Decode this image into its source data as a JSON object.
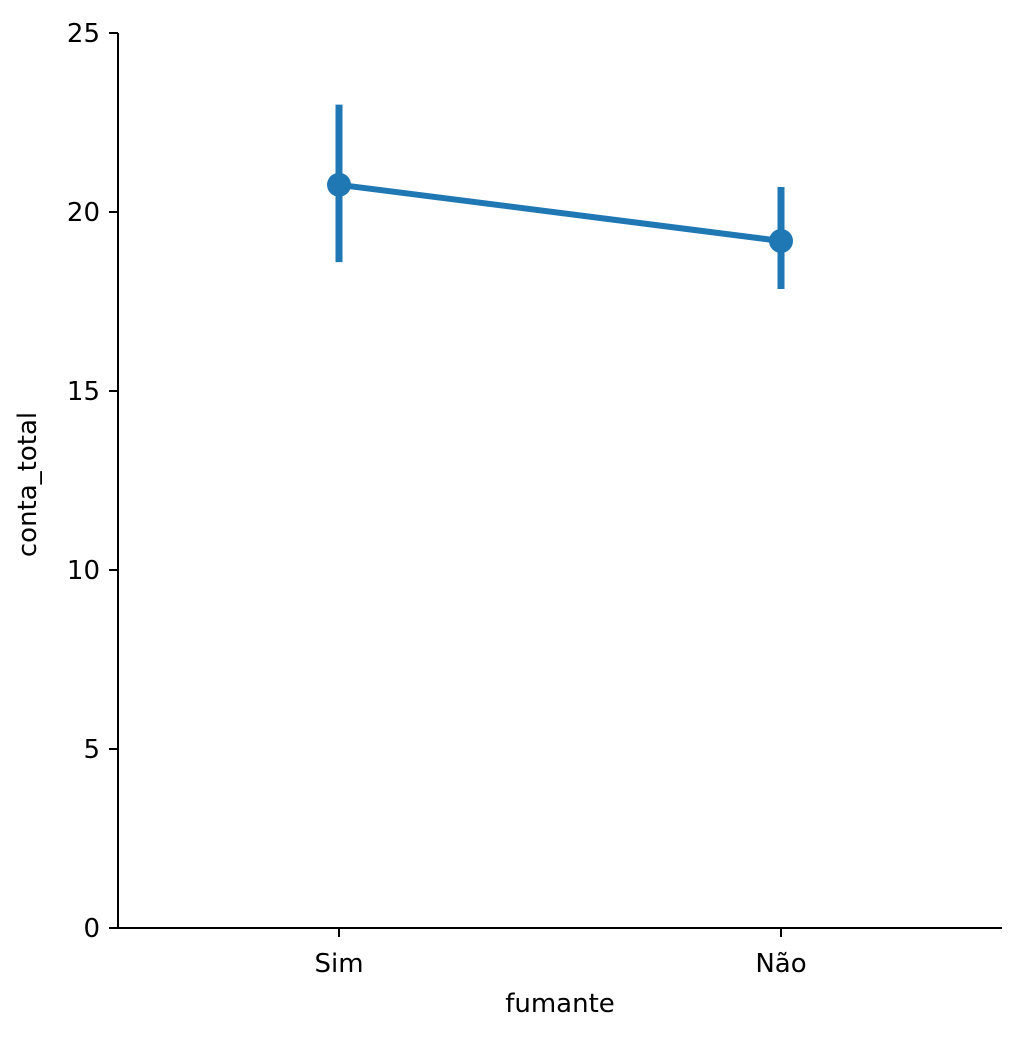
{
  "chart_data": {
    "type": "line",
    "categories": [
      "Sim",
      "Não"
    ],
    "series": [
      {
        "values": [
          20.76,
          19.19
        ],
        "ci_low": [
          18.6,
          17.85
        ],
        "ci_high": [
          23.0,
          20.7
        ]
      }
    ],
    "xlabel": "fumante",
    "ylabel": "conta_total",
    "ylim": [
      0,
      25
    ],
    "yticks": [
      "0",
      "5",
      "10",
      "15",
      "20",
      "25"
    ],
    "grid": false,
    "color": "#1f77b4"
  }
}
